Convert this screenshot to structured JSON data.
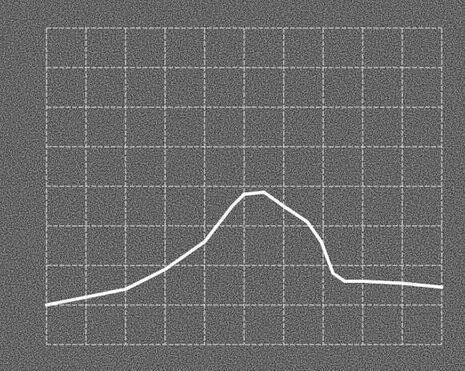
{
  "chart_data": {
    "type": "line",
    "x": [
      0,
      1,
      2,
      3,
      4,
      4.7,
      5,
      5.5,
      6,
      6.6,
      6.95,
      7.25,
      7.55,
      8,
      9,
      10
    ],
    "series": [
      {
        "color": "#ffffff",
        "values": [
          1.0,
          1.2,
          1.4,
          1.9,
          2.6,
          3.5,
          3.8,
          3.85,
          3.5,
          3.1,
          2.6,
          1.8,
          1.6,
          1.6,
          1.55,
          1.45
        ]
      }
    ],
    "xlim": [
      0,
      10
    ],
    "ylim": [
      0,
      8
    ],
    "xticks": [
      0,
      1,
      2,
      3,
      4,
      5,
      6,
      7,
      8,
      9,
      10
    ],
    "yticks": [
      0,
      1,
      2,
      3,
      4,
      5,
      6,
      7,
      8
    ],
    "grid": true
  }
}
